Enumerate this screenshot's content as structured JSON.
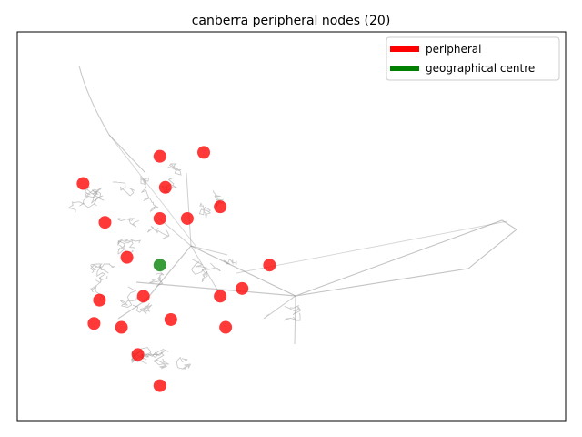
{
  "chart_data": {
    "type": "scatter",
    "title": "canberra peripheral nodes (20)",
    "xlabel": "",
    "ylabel": "",
    "grid": false,
    "axes_ticks": false,
    "legend_position": "top-right",
    "legend": [
      {
        "label": "peripheral",
        "color": "#ff0000"
      },
      {
        "label": "geographical centre",
        "color": "#008000"
      }
    ],
    "series": [
      {
        "name": "peripheral",
        "color": "#ff0000",
        "points": [
          {
            "x": 0.12,
            "y": 0.61
          },
          {
            "x": 0.26,
            "y": 0.68
          },
          {
            "x": 0.34,
            "y": 0.69
          },
          {
            "x": 0.27,
            "y": 0.6
          },
          {
            "x": 0.16,
            "y": 0.51
          },
          {
            "x": 0.26,
            "y": 0.52
          },
          {
            "x": 0.31,
            "y": 0.52
          },
          {
            "x": 0.37,
            "y": 0.55
          },
          {
            "x": 0.2,
            "y": 0.42
          },
          {
            "x": 0.46,
            "y": 0.4
          },
          {
            "x": 0.41,
            "y": 0.34
          },
          {
            "x": 0.37,
            "y": 0.32
          },
          {
            "x": 0.23,
            "y": 0.32
          },
          {
            "x": 0.15,
            "y": 0.31
          },
          {
            "x": 0.14,
            "y": 0.25
          },
          {
            "x": 0.19,
            "y": 0.24
          },
          {
            "x": 0.28,
            "y": 0.26
          },
          {
            "x": 0.38,
            "y": 0.24
          },
          {
            "x": 0.22,
            "y": 0.17
          },
          {
            "x": 0.26,
            "y": 0.09
          }
        ]
      },
      {
        "name": "geographical centre",
        "color": "#008000",
        "points": [
          {
            "x": 0.26,
            "y": 0.4
          }
        ]
      }
    ],
    "network_color": "#888888"
  }
}
